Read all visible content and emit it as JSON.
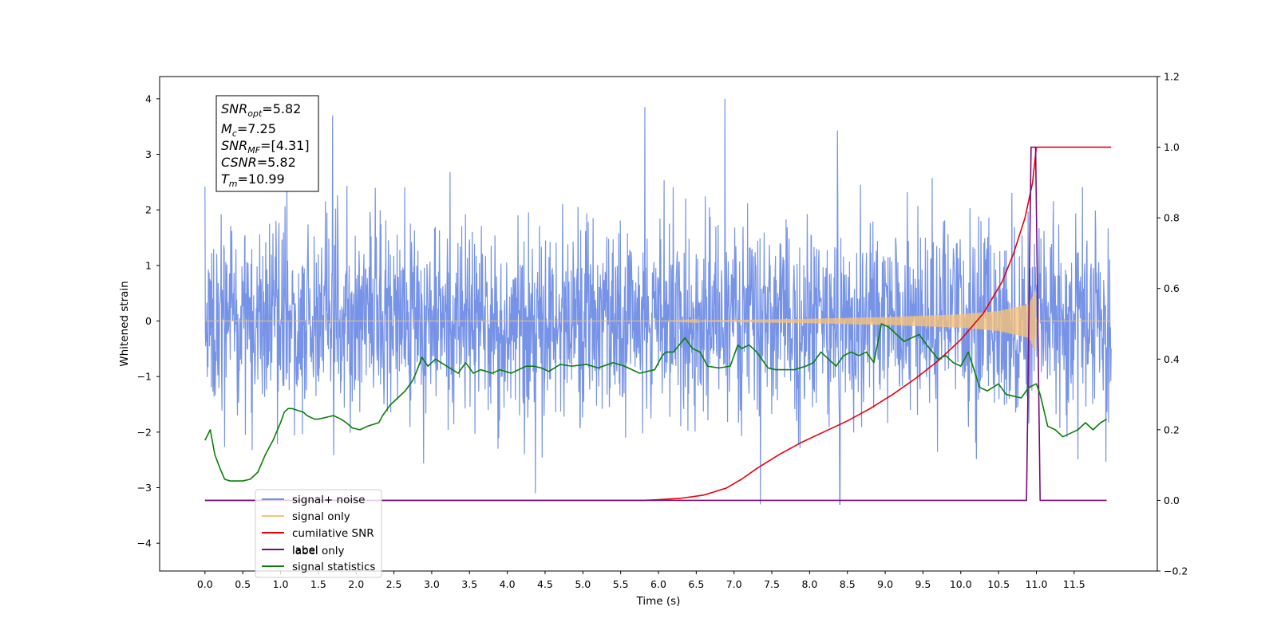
{
  "chart_data": {
    "type": "line",
    "title": "",
    "xlabel": "Time (s)",
    "ylabel": "Whitened strain",
    "y2label": "",
    "xlim": [
      -0.6,
      12.6
    ],
    "ylim": [
      -4.5,
      4.4
    ],
    "y2lim": [
      -0.2,
      1.2
    ],
    "x_ticks": [
      "0.0",
      "0.5",
      "1.0",
      "1.5",
      "2.0",
      "2.5",
      "3.0",
      "3.5",
      "4.0",
      "4.5",
      "5.0",
      "5.5",
      "6.0",
      "6.5",
      "7.0",
      "7.5",
      "8.0",
      "8.5",
      "9.0",
      "9.5",
      "10.0",
      "10.5",
      "11.0",
      "11.5"
    ],
    "y_ticks": [
      "4",
      "3",
      "2",
      "1",
      "0",
      "−1",
      "−2",
      "−3",
      "−4"
    ],
    "y2_ticks": [
      "1.2",
      "1.0",
      "0.8",
      "0.6",
      "0.4",
      "0.2",
      "0.0",
      "−0.2"
    ],
    "grid": false,
    "legend_position": "lower-left",
    "info_box": {
      "line1_main": "SNR",
      "line1_sub": "opt",
      "line1_val": "=5.82",
      "line2_main": "M",
      "line2_sub": "c",
      "line2_val": "=7.25",
      "line3_main": "SNR",
      "line3_sub": "MF",
      "line3_val": "=[4.31]",
      "line4_main": "CSNR",
      "line4_val": "=5.82",
      "line5_main": "T",
      "line5_sub": "m",
      "line5_val": "=10.99"
    },
    "series": [
      {
        "name": "signal+ noise",
        "color": "#6f8de6",
        "axis": "left",
        "kind": "noise",
        "x_range": [
          0.0,
          11.99
        ],
        "typical_range": [
          -2.2,
          2.3
        ],
        "notable_peaks": [
          [
            1.69,
            3.7
          ],
          [
            5.82,
            3.85
          ],
          [
            6.88,
            4.0
          ],
          [
            8.37,
            3.43
          ],
          [
            7.35,
            -3.3
          ],
          [
            8.4,
            -3.3
          ],
          [
            4.37,
            -3.1
          ]
        ]
      },
      {
        "name": "signal only",
        "color": "#f5c27a",
        "axis": "left",
        "kind": "chirp",
        "x_range": [
          0.0,
          11.99
        ],
        "chirp_envelope": [
          [
            0.0,
            0.0
          ],
          [
            6.0,
            0.0
          ],
          [
            7.0,
            0.02
          ],
          [
            8.0,
            0.04
          ],
          [
            9.0,
            0.07
          ],
          [
            10.0,
            0.12
          ],
          [
            10.5,
            0.18
          ],
          [
            10.9,
            0.3
          ],
          [
            10.99,
            0.55
          ],
          [
            11.0,
            0.0
          ],
          [
            11.99,
            0.0
          ]
        ]
      },
      {
        "name": "cumilative SNR",
        "color": "#e8000b",
        "axis": "right",
        "x": [
          0.0,
          5.8,
          6.0,
          6.3,
          6.6,
          6.9,
          7.1,
          7.3,
          7.6,
          7.9,
          8.2,
          8.5,
          8.8,
          9.1,
          9.4,
          9.7,
          10.0,
          10.3,
          10.55,
          10.7,
          10.85,
          10.95,
          11.0,
          11.99
        ],
        "values": [
          0.0,
          0.0,
          0.002,
          0.006,
          0.015,
          0.035,
          0.06,
          0.09,
          0.13,
          0.165,
          0.195,
          0.225,
          0.26,
          0.3,
          0.345,
          0.395,
          0.455,
          0.53,
          0.62,
          0.7,
          0.8,
          0.9,
          1.0,
          1.0
        ]
      },
      {
        "name": "label",
        "color": "#7b0b77",
        "axis": "right",
        "x": [
          0.0,
          10.87,
          10.93,
          10.99,
          11.05,
          11.93
        ],
        "values": [
          0.0,
          0.0,
          1.0,
          1.0,
          0.0,
          0.0
        ]
      },
      {
        "name": "label only",
        "color": "#cccccc",
        "axis": "right",
        "hidden_under_legend": true
      },
      {
        "name": "signal statistics",
        "color": "#0a7f0a",
        "axis": "right",
        "x": [
          0.0,
          0.07,
          0.13,
          0.2,
          0.26,
          0.33,
          0.4,
          0.5,
          0.6,
          0.7,
          0.8,
          0.9,
          1.0,
          1.05,
          1.1,
          1.15,
          1.3,
          1.35,
          1.45,
          1.5,
          1.6,
          1.7,
          1.8,
          1.87,
          1.95,
          2.05,
          2.15,
          2.3,
          2.35,
          2.45,
          2.55,
          2.65,
          2.75,
          2.8,
          2.87,
          2.95,
          3.0,
          3.05,
          3.2,
          3.35,
          3.45,
          3.55,
          3.65,
          3.8,
          3.85,
          3.9,
          4.05,
          4.15,
          4.25,
          4.35,
          4.45,
          4.55,
          4.7,
          4.85,
          5.05,
          5.2,
          5.4,
          5.55,
          5.75,
          5.95,
          6.05,
          6.1,
          6.2,
          6.35,
          6.45,
          6.55,
          6.65,
          6.8,
          6.95,
          7.05,
          7.1,
          7.2,
          7.3,
          7.45,
          7.55,
          7.7,
          7.8,
          7.95,
          8.05,
          8.15,
          8.25,
          8.35,
          8.45,
          8.55,
          8.65,
          8.75,
          8.85,
          8.95,
          9.05,
          9.15,
          9.25,
          9.35,
          9.45,
          9.55,
          9.7,
          9.8,
          9.9,
          10.0,
          10.1,
          10.25,
          10.35,
          10.5,
          10.6,
          10.8,
          10.9,
          11.0,
          11.05,
          11.15,
          11.25,
          11.35,
          11.45,
          11.55,
          11.65,
          11.75,
          11.85,
          11.93
        ],
        "values": [
          0.17,
          0.2,
          0.13,
          0.09,
          0.06,
          0.055,
          0.055,
          0.055,
          0.06,
          0.08,
          0.13,
          0.17,
          0.22,
          0.25,
          0.26,
          0.26,
          0.25,
          0.24,
          0.23,
          0.23,
          0.235,
          0.24,
          0.23,
          0.22,
          0.205,
          0.2,
          0.21,
          0.22,
          0.24,
          0.27,
          0.29,
          0.31,
          0.34,
          0.365,
          0.405,
          0.38,
          0.39,
          0.4,
          0.38,
          0.36,
          0.39,
          0.36,
          0.37,
          0.36,
          0.365,
          0.37,
          0.36,
          0.37,
          0.38,
          0.38,
          0.375,
          0.365,
          0.385,
          0.38,
          0.385,
          0.375,
          0.39,
          0.38,
          0.36,
          0.37,
          0.41,
          0.42,
          0.42,
          0.46,
          0.43,
          0.42,
          0.38,
          0.375,
          0.38,
          0.44,
          0.43,
          0.44,
          0.42,
          0.375,
          0.37,
          0.37,
          0.37,
          0.38,
          0.39,
          0.42,
          0.4,
          0.38,
          0.41,
          0.42,
          0.41,
          0.42,
          0.39,
          0.5,
          0.49,
          0.47,
          0.45,
          0.46,
          0.47,
          0.44,
          0.4,
          0.41,
          0.39,
          0.38,
          0.42,
          0.32,
          0.31,
          0.33,
          0.3,
          0.29,
          0.32,
          0.33,
          0.3,
          0.21,
          0.2,
          0.18,
          0.19,
          0.2,
          0.22,
          0.2,
          0.22,
          0.23
        ]
      }
    ]
  }
}
